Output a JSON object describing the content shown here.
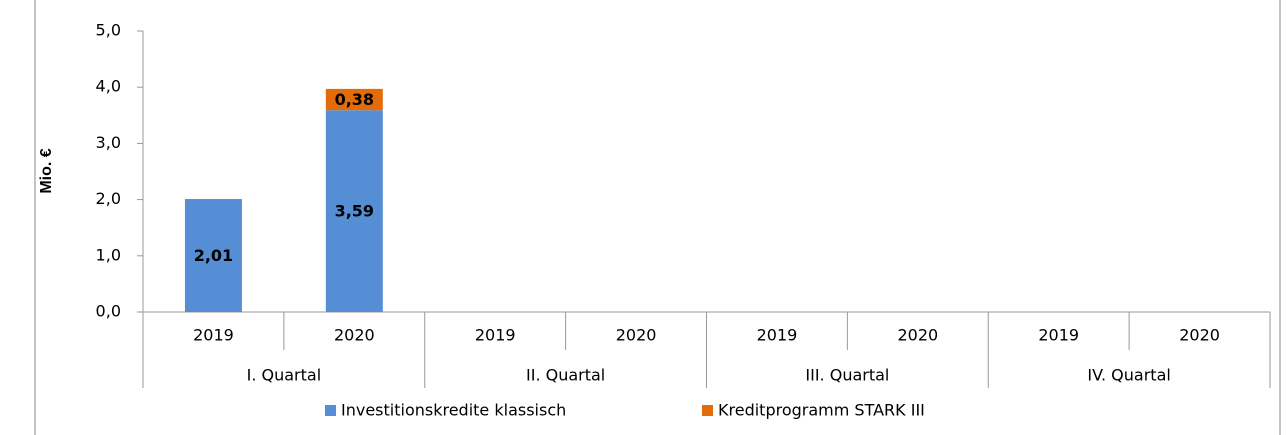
{
  "chart_data": {
    "type": "bar",
    "stacked": true,
    "y_label": "Mio. €",
    "categories": [
      "2019",
      "2020",
      "2019",
      "2020",
      "2019",
      "2020",
      "2019",
      "2020"
    ],
    "groups": [
      "I. Quartal",
      "II. Quartal",
      "III. Quartal",
      "IV. Quartal"
    ],
    "series": [
      {
        "name": "Investitionskredite klassisch",
        "color": "#558ed5",
        "values": [
          2.01,
          3.59,
          null,
          null,
          null,
          null,
          null,
          null
        ],
        "value_labels": [
          "2,01",
          "3,59",
          null,
          null,
          null,
          null,
          null,
          null
        ]
      },
      {
        "name": "Kreditprogramm STARK III",
        "color": "#e36c09",
        "values": [
          null,
          0.38,
          null,
          null,
          null,
          null,
          null,
          null
        ],
        "value_labels": [
          null,
          "0,38",
          null,
          null,
          null,
          null,
          null,
          null
        ]
      }
    ],
    "ylim": [
      0,
      5
    ],
    "yticks": [
      {
        "value": 0,
        "label": "0,0"
      },
      {
        "value": 1,
        "label": "1,0"
      },
      {
        "value": 2,
        "label": "2,0"
      },
      {
        "value": 3,
        "label": "3,0"
      },
      {
        "value": 4,
        "label": "4,0"
      },
      {
        "value": 5,
        "label": "5,0"
      }
    ]
  }
}
